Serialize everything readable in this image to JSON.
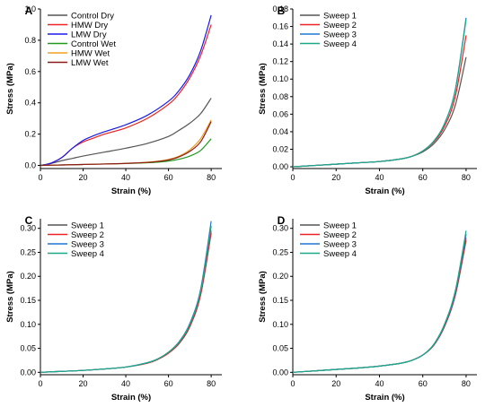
{
  "chart_data": [
    {
      "panel": "A",
      "type": "line",
      "xlabel": "Strain (%)",
      "ylabel": "Stress (MPa)",
      "xlim": [
        0,
        85
      ],
      "ylim": [
        -0.02,
        1.0
      ],
      "xticks": [
        0,
        20,
        40,
        60,
        80
      ],
      "yticks": [
        0.0,
        0.2,
        0.4,
        0.6,
        0.8,
        1.0
      ],
      "ytick_labels": [
        "0.0",
        "0.2",
        "0.4",
        "0.6",
        "0.8",
        "1.0"
      ],
      "legend_position": "top-left",
      "series": [
        {
          "name": "Control Dry",
          "color": "#555555",
          "x": [
            0,
            5,
            10,
            15,
            20,
            30,
            40,
            50,
            60,
            65,
            70,
            75,
            80
          ],
          "y": [
            0,
            0.012,
            0.03,
            0.045,
            0.06,
            0.085,
            0.11,
            0.14,
            0.185,
            0.225,
            0.27,
            0.33,
            0.43
          ]
        },
        {
          "name": "HMW Dry",
          "color": "#ee2222",
          "x": [
            0,
            5,
            10,
            15,
            20,
            25,
            30,
            40,
            50,
            60,
            65,
            70,
            75,
            80
          ],
          "y": [
            0,
            0.015,
            0.05,
            0.11,
            0.15,
            0.175,
            0.2,
            0.24,
            0.3,
            0.39,
            0.46,
            0.56,
            0.7,
            0.9
          ]
        },
        {
          "name": "LMW Dry",
          "color": "#1a1aee",
          "x": [
            0,
            5,
            10,
            15,
            20,
            25,
            30,
            40,
            50,
            60,
            65,
            70,
            75,
            80
          ],
          "y": [
            0,
            0.015,
            0.05,
            0.11,
            0.16,
            0.19,
            0.215,
            0.26,
            0.32,
            0.41,
            0.48,
            0.58,
            0.73,
            0.96
          ]
        },
        {
          "name": "Control Wet",
          "color": "#1e9a1e",
          "x": [
            0,
            10,
            20,
            30,
            40,
            50,
            55,
            60,
            65,
            70,
            75,
            80
          ],
          "y": [
            0,
            0.003,
            0.006,
            0.009,
            0.012,
            0.017,
            0.021,
            0.028,
            0.04,
            0.06,
            0.095,
            0.17
          ]
        },
        {
          "name": "HMW Wet",
          "color": "#f0a020",
          "x": [
            0,
            10,
            20,
            30,
            40,
            50,
            55,
            60,
            65,
            70,
            75,
            80
          ],
          "y": [
            0,
            0.003,
            0.006,
            0.009,
            0.013,
            0.02,
            0.027,
            0.038,
            0.06,
            0.1,
            0.17,
            0.29
          ]
        },
        {
          "name": "LMW Wet",
          "color": "#8b1a1a",
          "x": [
            0,
            10,
            20,
            30,
            40,
            50,
            55,
            60,
            65,
            70,
            75,
            80
          ],
          "y": [
            0,
            0.003,
            0.006,
            0.009,
            0.013,
            0.019,
            0.025,
            0.035,
            0.055,
            0.09,
            0.15,
            0.28
          ]
        }
      ]
    },
    {
      "panel": "B",
      "type": "line",
      "xlabel": "Strain (%)",
      "ylabel": "Stress (MPa)",
      "xlim": [
        0,
        85
      ],
      "ylim": [
        -0.002,
        0.18
      ],
      "xticks": [
        0,
        20,
        40,
        60,
        80
      ],
      "yticks": [
        0.0,
        0.02,
        0.04,
        0.06,
        0.08,
        0.1,
        0.12,
        0.14,
        0.16,
        0.18
      ],
      "ytick_labels": [
        "0.00",
        "0.02",
        "0.04",
        "0.06",
        "0.08",
        "0.10",
        "0.12",
        "0.14",
        "0.16",
        "0.18"
      ],
      "legend_position": "top-left",
      "series": [
        {
          "name": "Sweep 1",
          "color": "#555555",
          "x": [
            0,
            10,
            20,
            30,
            40,
            50,
            55,
            60,
            65,
            70,
            75,
            80
          ],
          "y": [
            0,
            0.0015,
            0.003,
            0.0045,
            0.006,
            0.009,
            0.012,
            0.017,
            0.026,
            0.042,
            0.07,
            0.125
          ]
        },
        {
          "name": "Sweep 2",
          "color": "#ee2222",
          "x": [
            0,
            10,
            20,
            30,
            40,
            50,
            55,
            60,
            65,
            70,
            75,
            80
          ],
          "y": [
            0,
            0.0015,
            0.003,
            0.0045,
            0.006,
            0.009,
            0.012,
            0.018,
            0.028,
            0.046,
            0.08,
            0.15
          ]
        },
        {
          "name": "Sweep 3",
          "color": "#1f77d4",
          "x": [
            0,
            10,
            20,
            30,
            40,
            50,
            55,
            60,
            65,
            70,
            75,
            80
          ],
          "y": [
            0,
            0.0015,
            0.003,
            0.0045,
            0.006,
            0.009,
            0.012,
            0.018,
            0.029,
            0.049,
            0.088,
            0.17
          ]
        },
        {
          "name": "Sweep 4",
          "color": "#1aaa88",
          "x": [
            0,
            10,
            20,
            30,
            40,
            50,
            55,
            60,
            65,
            70,
            75,
            80
          ],
          "y": [
            0,
            0.0015,
            0.003,
            0.0045,
            0.006,
            0.009,
            0.012,
            0.018,
            0.029,
            0.049,
            0.087,
            0.168
          ]
        }
      ]
    },
    {
      "panel": "C",
      "type": "line",
      "xlabel": "Strain (%)",
      "ylabel": "Stress (MPa)",
      "xlim": [
        0,
        85
      ],
      "ylim": [
        -0.005,
        0.32
      ],
      "xticks": [
        0,
        20,
        40,
        60,
        80
      ],
      "yticks": [
        0.0,
        0.05,
        0.1,
        0.15,
        0.2,
        0.25,
        0.3
      ],
      "ytick_labels": [
        "0.00",
        "0.05",
        "0.10",
        "0.15",
        "0.20",
        "0.25",
        "0.30"
      ],
      "legend_position": "top-left",
      "series": [
        {
          "name": "Sweep 1",
          "color": "#555555",
          "x": [
            0,
            10,
            20,
            30,
            40,
            50,
            55,
            60,
            65,
            70,
            75,
            80
          ],
          "y": [
            0,
            0.002,
            0.004,
            0.007,
            0.011,
            0.019,
            0.027,
            0.04,
            0.06,
            0.095,
            0.16,
            0.29
          ]
        },
        {
          "name": "Sweep 2",
          "color": "#ee2222",
          "x": [
            0,
            10,
            20,
            30,
            40,
            50,
            55,
            60,
            65,
            70,
            75,
            80
          ],
          "y": [
            0,
            0.002,
            0.004,
            0.007,
            0.011,
            0.019,
            0.027,
            0.04,
            0.061,
            0.097,
            0.162,
            0.295
          ]
        },
        {
          "name": "Sweep 3",
          "color": "#1f77d4",
          "x": [
            0,
            10,
            20,
            30,
            40,
            50,
            55,
            60,
            65,
            70,
            75,
            80
          ],
          "y": [
            0,
            0.002,
            0.004,
            0.007,
            0.011,
            0.02,
            0.028,
            0.042,
            0.064,
            0.102,
            0.172,
            0.315
          ]
        },
        {
          "name": "Sweep 4",
          "color": "#1aaa88",
          "x": [
            0,
            10,
            20,
            30,
            40,
            50,
            55,
            60,
            65,
            70,
            75,
            80
          ],
          "y": [
            0,
            0.002,
            0.004,
            0.007,
            0.011,
            0.02,
            0.028,
            0.042,
            0.063,
            0.1,
            0.168,
            0.305
          ]
        }
      ]
    },
    {
      "panel": "D",
      "type": "line",
      "xlabel": "Strain (%)",
      "ylabel": "Stress (MPa)",
      "xlim": [
        0,
        85
      ],
      "ylim": [
        -0.005,
        0.32
      ],
      "xticks": [
        0,
        20,
        40,
        60,
        80
      ],
      "yticks": [
        0.0,
        0.05,
        0.1,
        0.15,
        0.2,
        0.25,
        0.3
      ],
      "ytick_labels": [
        "0.00",
        "0.05",
        "0.10",
        "0.15",
        "0.20",
        "0.25",
        "0.30"
      ],
      "legend_position": "top-left",
      "series": [
        {
          "name": "Sweep 1",
          "color": "#555555",
          "x": [
            0,
            10,
            20,
            30,
            40,
            50,
            55,
            60,
            65,
            70,
            75,
            80
          ],
          "y": [
            0,
            0.003,
            0.006,
            0.009,
            0.013,
            0.019,
            0.025,
            0.036,
            0.056,
            0.095,
            0.16,
            0.275
          ]
        },
        {
          "name": "Sweep 2",
          "color": "#ee2222",
          "x": [
            0,
            10,
            20,
            30,
            40,
            50,
            55,
            60,
            65,
            70,
            75,
            80
          ],
          "y": [
            0,
            0.003,
            0.006,
            0.009,
            0.013,
            0.019,
            0.025,
            0.036,
            0.056,
            0.096,
            0.162,
            0.28
          ]
        },
        {
          "name": "Sweep 3",
          "color": "#1f77d4",
          "x": [
            0,
            10,
            20,
            30,
            40,
            50,
            55,
            60,
            65,
            70,
            75,
            80
          ],
          "y": [
            0,
            0.003,
            0.006,
            0.009,
            0.013,
            0.019,
            0.025,
            0.036,
            0.057,
            0.098,
            0.166,
            0.288
          ]
        },
        {
          "name": "Sweep 4",
          "color": "#1aaa88",
          "x": [
            0,
            10,
            20,
            30,
            40,
            50,
            55,
            60,
            65,
            70,
            75,
            80
          ],
          "y": [
            0,
            0.003,
            0.006,
            0.009,
            0.013,
            0.019,
            0.025,
            0.036,
            0.058,
            0.1,
            0.17,
            0.295
          ]
        }
      ]
    }
  ]
}
